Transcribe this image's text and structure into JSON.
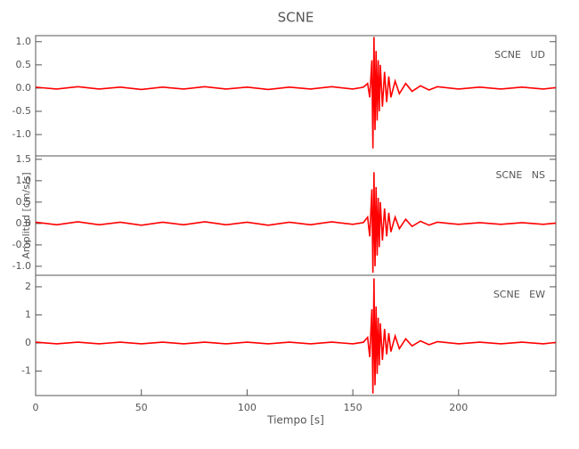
{
  "title": "SCNE",
  "y_label": "Amplitud [cm/s/s]",
  "chart_data": [
    {
      "type": "line",
      "label": "SCNE   UD",
      "color": "#ff0000",
      "x": [
        0,
        10,
        20,
        30,
        40,
        50,
        60,
        70,
        80,
        90,
        100,
        110,
        120,
        130,
        140,
        150,
        155,
        157,
        158,
        159,
        159.5,
        160,
        160.5,
        161,
        161.5,
        162,
        162.5,
        163,
        164,
        165,
        166,
        167,
        168,
        170,
        172,
        175,
        178,
        182,
        186,
        190,
        200,
        210,
        220,
        230,
        240,
        246
      ],
      "values": [
        0.02,
        -0.02,
        0.03,
        -0.02,
        0.02,
        -0.03,
        0.02,
        -0.02,
        0.03,
        -0.02,
        0.02,
        -0.03,
        0.02,
        -0.02,
        0.03,
        -0.02,
        0.02,
        0.1,
        -0.2,
        0.6,
        -1.3,
        1.1,
        -0.9,
        0.8,
        -0.7,
        0.6,
        -0.5,
        0.5,
        -0.4,
        0.35,
        -0.3,
        0.25,
        -0.2,
        0.15,
        -0.12,
        0.1,
        -0.07,
        0.05,
        -0.04,
        0.03,
        -0.02,
        0.02,
        -0.02,
        0.02,
        -0.02,
        0.01
      ],
      "xlim": [
        0,
        246
      ],
      "ylim": [
        -1.46,
        1.13
      ],
      "yticks": [
        {
          "value": 1.0,
          "label": "1.0"
        },
        0.5,
        {
          "value": 0.0,
          "label": "0.0"
        },
        -0.5,
        {
          "value": -1.0,
          "label": "-1.0"
        }
      ]
    },
    {
      "type": "line",
      "label": "SCNE   NS",
      "color": "#ff0000",
      "x": [
        0,
        10,
        20,
        30,
        40,
        50,
        60,
        70,
        80,
        90,
        100,
        110,
        120,
        130,
        140,
        150,
        155,
        157,
        158,
        159,
        159.5,
        160,
        160.5,
        161,
        161.5,
        162,
        162.5,
        163,
        164,
        165,
        166,
        167,
        168,
        170,
        172,
        175,
        178,
        182,
        186,
        190,
        200,
        210,
        220,
        230,
        240,
        246
      ],
      "values": [
        0.03,
        -0.03,
        0.04,
        -0.03,
        0.03,
        -0.04,
        0.03,
        -0.03,
        0.04,
        -0.03,
        0.03,
        -0.04,
        0.03,
        -0.03,
        0.04,
        -0.02,
        0.02,
        0.15,
        -0.3,
        0.8,
        -1.15,
        1.2,
        -1.0,
        0.85,
        -0.75,
        0.6,
        -0.55,
        0.5,
        -0.4,
        0.35,
        -0.3,
        0.25,
        -0.2,
        0.15,
        -0.12,
        0.1,
        -0.07,
        0.05,
        -0.04,
        0.03,
        -0.02,
        0.02,
        -0.02,
        0.02,
        -0.02,
        0.01
      ],
      "xlim": [
        0,
        246
      ],
      "ylim": [
        -1.21,
        1.58
      ],
      "yticks": [
        1.5,
        {
          "value": 1.0,
          "label": "1.0"
        },
        0.5,
        {
          "value": 0.0,
          "label": "0.0"
        },
        -0.5,
        {
          "value": -1.0,
          "label": "-1.0"
        }
      ]
    },
    {
      "type": "line",
      "label": "SCNE   EW",
      "color": "#ff0000",
      "x": [
        0,
        10,
        20,
        30,
        40,
        50,
        60,
        70,
        80,
        90,
        100,
        110,
        120,
        130,
        140,
        150,
        155,
        157,
        158,
        159,
        159.5,
        160,
        160.5,
        161,
        161.5,
        162,
        162.5,
        163,
        164,
        165,
        166,
        167,
        168,
        170,
        172,
        175,
        178,
        182,
        186,
        190,
        200,
        210,
        220,
        230,
        240,
        246
      ],
      "values": [
        0.03,
        -0.03,
        0.03,
        -0.03,
        0.03,
        -0.03,
        0.03,
        -0.03,
        0.03,
        -0.03,
        0.03,
        -0.03,
        0.03,
        -0.03,
        0.03,
        -0.03,
        0.03,
        0.2,
        -0.5,
        1.2,
        -1.8,
        2.3,
        -1.5,
        1.3,
        -1.1,
        0.9,
        -0.8,
        0.7,
        -0.6,
        0.5,
        -0.4,
        0.35,
        -0.3,
        0.25,
        -0.2,
        0.15,
        -0.1,
        0.08,
        -0.06,
        0.05,
        -0.03,
        0.03,
        -0.03,
        0.03,
        -0.03,
        0.02
      ],
      "xlim": [
        0,
        246
      ],
      "ylim": [
        -1.87,
        2.41
      ],
      "yticks": [
        2,
        1,
        0,
        -1
      ],
      "xticks": [
        0,
        50,
        100,
        150,
        200
      ],
      "x_label": "Tiempo [s]"
    }
  ]
}
